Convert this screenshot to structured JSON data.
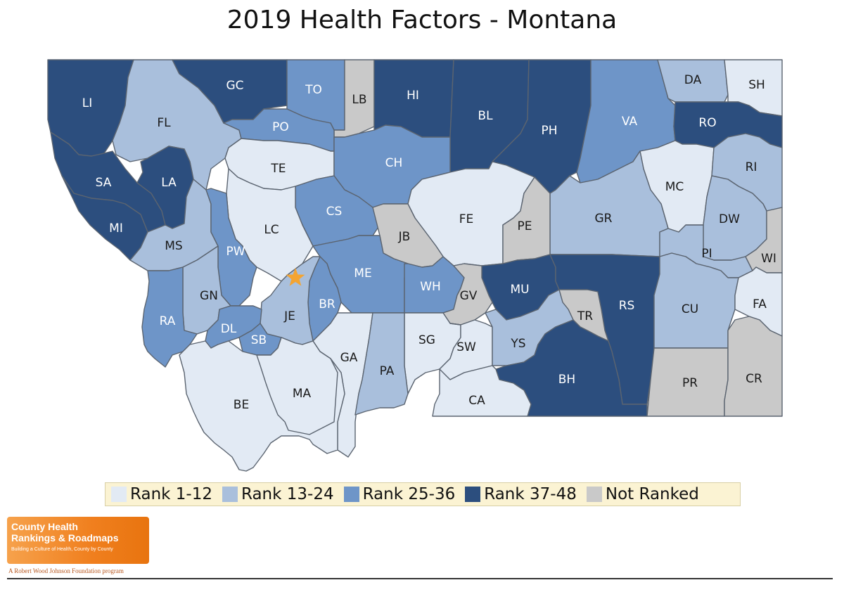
{
  "title": "2019 Health Factors - Montana",
  "colors": {
    "rank_1_12": "#e2eaf4",
    "rank_13_24": "#a9bfdc",
    "rank_25_36": "#6e95c8",
    "rank_37_48": "#2c4e7e",
    "not_ranked": "#c9c9c9",
    "label_light": "#ffffff",
    "label_dark": "#1a1a1a",
    "star": "#f4a431"
  },
  "legend": [
    {
      "label": "Rank 1-12",
      "class": "rank_1_12"
    },
    {
      "label": "Rank 13-24",
      "class": "rank_13_24"
    },
    {
      "label": "Rank 25-36",
      "class": "rank_25_36"
    },
    {
      "label": "Rank 37-48",
      "class": "rank_37_48"
    },
    {
      "label": "Not Ranked",
      "class": "not_ranked"
    }
  ],
  "counties": [
    {
      "code": "LI",
      "class": "rank_37_48"
    },
    {
      "code": "FL",
      "class": "rank_13_24"
    },
    {
      "code": "GC",
      "class": "rank_37_48"
    },
    {
      "code": "TO",
      "class": "rank_25_36"
    },
    {
      "code": "LB",
      "class": "not_ranked"
    },
    {
      "code": "HI",
      "class": "rank_37_48"
    },
    {
      "code": "BL",
      "class": "rank_37_48"
    },
    {
      "code": "PH",
      "class": "rank_37_48"
    },
    {
      "code": "VA",
      "class": "rank_25_36"
    },
    {
      "code": "DA",
      "class": "rank_13_24"
    },
    {
      "code": "SH",
      "class": "rank_1_12"
    },
    {
      "code": "RO",
      "class": "rank_37_48"
    },
    {
      "code": "PO",
      "class": "rank_25_36"
    },
    {
      "code": "SA",
      "class": "rank_37_48"
    },
    {
      "code": "LA",
      "class": "rank_37_48"
    },
    {
      "code": "TE",
      "class": "rank_1_12"
    },
    {
      "code": "CH",
      "class": "rank_25_36"
    },
    {
      "code": "MI",
      "class": "rank_37_48"
    },
    {
      "code": "MC",
      "class": "rank_1_12"
    },
    {
      "code": "RI",
      "class": "rank_13_24"
    },
    {
      "code": "CS",
      "class": "rank_25_36"
    },
    {
      "code": "GR",
      "class": "rank_13_24"
    },
    {
      "code": "FE",
      "class": "rank_1_12"
    },
    {
      "code": "PE",
      "class": "not_ranked"
    },
    {
      "code": "DW",
      "class": "rank_13_24"
    },
    {
      "code": "LC",
      "class": "rank_1_12"
    },
    {
      "code": "JB",
      "class": "not_ranked"
    },
    {
      "code": "MS",
      "class": "rank_13_24"
    },
    {
      "code": "PW",
      "class": "rank_25_36"
    },
    {
      "code": "PI",
      "class": "rank_13_24"
    },
    {
      "code": "WI",
      "class": "not_ranked"
    },
    {
      "code": "ME",
      "class": "rank_25_36"
    },
    {
      "code": "GN",
      "class": "rank_13_24"
    },
    {
      "code": "WH",
      "class": "rank_25_36"
    },
    {
      "code": "MU",
      "class": "rank_37_48"
    },
    {
      "code": "RS",
      "class": "rank_37_48"
    },
    {
      "code": "CU",
      "class": "rank_13_24"
    },
    {
      "code": "FA",
      "class": "rank_1_12"
    },
    {
      "code": "BR",
      "class": "rank_25_36"
    },
    {
      "code": "JE",
      "class": "rank_13_24"
    },
    {
      "code": "GV",
      "class": "not_ranked"
    },
    {
      "code": "TR",
      "class": "not_ranked"
    },
    {
      "code": "RA",
      "class": "rank_25_36"
    },
    {
      "code": "DL",
      "class": "rank_25_36"
    },
    {
      "code": "SB",
      "class": "rank_25_36"
    },
    {
      "code": "SG",
      "class": "rank_1_12"
    },
    {
      "code": "SW",
      "class": "rank_1_12"
    },
    {
      "code": "YS",
      "class": "rank_13_24"
    },
    {
      "code": "GA",
      "class": "rank_1_12"
    },
    {
      "code": "PA",
      "class": "rank_13_24"
    },
    {
      "code": "BH",
      "class": "rank_37_48"
    },
    {
      "code": "BE",
      "class": "rank_1_12"
    },
    {
      "code": "MA",
      "class": "rank_1_12"
    },
    {
      "code": "CA",
      "class": "rank_1_12"
    },
    {
      "code": "PR",
      "class": "not_ranked"
    },
    {
      "code": "CR",
      "class": "not_ranked"
    }
  ],
  "logo": {
    "line1": "County Health",
    "line2": "Rankings & Roadmaps",
    "tagline": "Building a Culture of Health, County by County",
    "foundation": "A Robert Wood Johnson Foundation program"
  }
}
